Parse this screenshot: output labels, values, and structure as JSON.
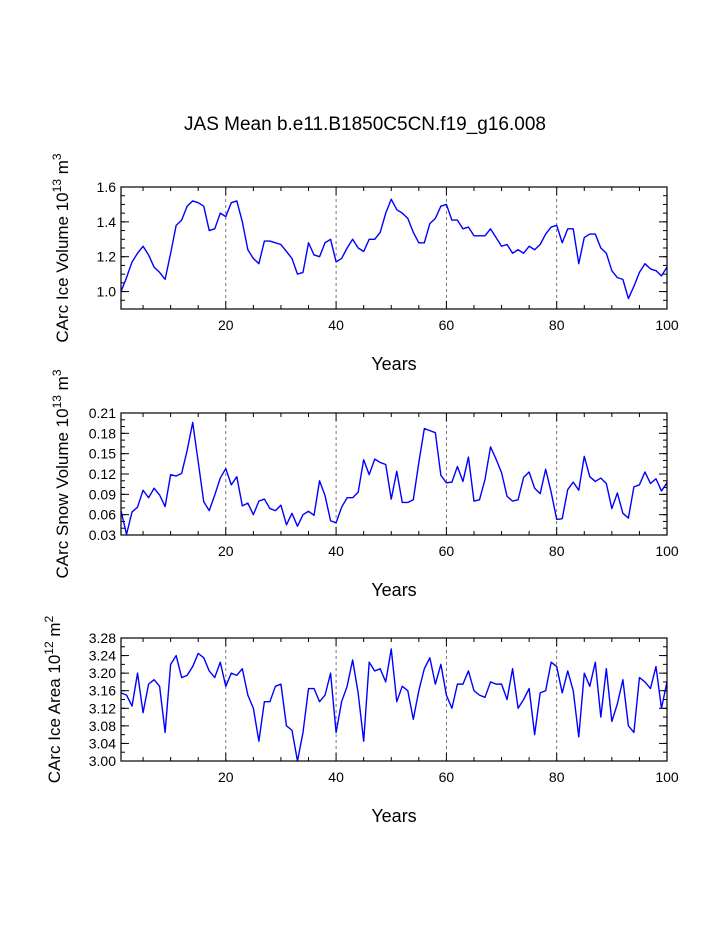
{
  "title": "JAS Mean b.e11.B1850C5CN.f19_g16.008",
  "chart_data": [
    {
      "type": "line",
      "name": "ice-volume",
      "xlabel": "Years",
      "ylabel": {
        "main": "CArc Ice Volume 10",
        "exp": "13",
        "unit": " m",
        "unit_exp": "3"
      },
      "xlim": [
        1,
        100
      ],
      "ylim": [
        0.9,
        1.6
      ],
      "x_ticks": [
        20,
        40,
        60,
        80,
        100
      ],
      "x_tick_labels": [
        "20",
        "40",
        "60",
        "80",
        "100"
      ],
      "y_ticks": [
        1.0,
        1.2,
        1.4,
        1.6
      ],
      "y_tick_labels": [
        "1.0",
        "1.2",
        "1.4",
        "1.6"
      ],
      "y_minor_step": 0.05,
      "grid_x": [
        20,
        40,
        60,
        80
      ],
      "values": [
        1.0,
        1.08,
        1.17,
        1.22,
        1.26,
        1.21,
        1.14,
        1.11,
        1.07,
        1.22,
        1.38,
        1.41,
        1.49,
        1.52,
        1.51,
        1.49,
        1.35,
        1.36,
        1.45,
        1.43,
        1.51,
        1.52,
        1.4,
        1.24,
        1.19,
        1.16,
        1.29,
        1.29,
        1.28,
        1.27,
        1.23,
        1.19,
        1.1,
        1.11,
        1.28,
        1.21,
        1.2,
        1.28,
        1.3,
        1.17,
        1.19,
        1.25,
        1.3,
        1.25,
        1.23,
        1.3,
        1.3,
        1.34,
        1.45,
        1.53,
        1.47,
        1.45,
        1.42,
        1.34,
        1.28,
        1.28,
        1.39,
        1.42,
        1.49,
        1.5,
        1.41,
        1.41,
        1.36,
        1.37,
        1.32,
        1.32,
        1.32,
        1.36,
        1.31,
        1.26,
        1.27,
        1.22,
        1.24,
        1.22,
        1.26,
        1.24,
        1.27,
        1.33,
        1.37,
        1.38,
        1.28,
        1.36,
        1.36,
        1.16,
        1.31,
        1.33,
        1.33,
        1.25,
        1.22,
        1.12,
        1.08,
        1.07,
        0.96,
        1.03,
        1.11,
        1.16,
        1.13,
        1.12,
        1.09,
        1.14
      ]
    },
    {
      "type": "line",
      "name": "snow-volume",
      "xlabel": "Years",
      "ylabel": {
        "main": "CArc Snow Volume 10",
        "exp": "13",
        "unit": " m",
        "unit_exp": "3"
      },
      "xlim": [
        1,
        100
      ],
      "ylim": [
        0.03,
        0.21
      ],
      "x_ticks": [
        20,
        40,
        60,
        80,
        100
      ],
      "x_tick_labels": [
        "20",
        "40",
        "60",
        "80",
        "100"
      ],
      "y_ticks": [
        0.03,
        0.06,
        0.09,
        0.12,
        0.15,
        0.18,
        0.21
      ],
      "y_tick_labels": [
        "0.03",
        "0.06",
        "0.09",
        "0.12",
        "0.15",
        "0.18",
        "0.21"
      ],
      "y_minor_step": 0.01,
      "grid_x": [
        20,
        40,
        60,
        80
      ],
      "values": [
        0.066,
        0.031,
        0.064,
        0.071,
        0.096,
        0.085,
        0.099,
        0.089,
        0.072,
        0.119,
        0.117,
        0.121,
        0.155,
        0.196,
        0.138,
        0.079,
        0.066,
        0.089,
        0.114,
        0.128,
        0.104,
        0.116,
        0.073,
        0.077,
        0.06,
        0.08,
        0.083,
        0.069,
        0.066,
        0.074,
        0.045,
        0.062,
        0.043,
        0.06,
        0.065,
        0.059,
        0.11,
        0.088,
        0.051,
        0.048,
        0.071,
        0.085,
        0.085,
        0.093,
        0.141,
        0.119,
        0.142,
        0.137,
        0.134,
        0.083,
        0.124,
        0.078,
        0.078,
        0.082,
        0.137,
        0.187,
        0.184,
        0.181,
        0.118,
        0.107,
        0.108,
        0.131,
        0.109,
        0.145,
        0.08,
        0.082,
        0.112,
        0.16,
        0.142,
        0.122,
        0.087,
        0.08,
        0.082,
        0.115,
        0.123,
        0.099,
        0.091,
        0.127,
        0.093,
        0.053,
        0.054,
        0.097,
        0.108,
        0.096,
        0.146,
        0.116,
        0.109,
        0.114,
        0.106,
        0.069,
        0.092,
        0.062,
        0.055,
        0.101,
        0.104,
        0.123,
        0.106,
        0.113,
        0.095,
        0.107
      ]
    },
    {
      "type": "line",
      "name": "ice-area",
      "xlabel": "Years",
      "ylabel": {
        "main": "CArc Ice Area 10",
        "exp": "12",
        "unit": " m",
        "unit_exp": "2"
      },
      "xlim": [
        1,
        100
      ],
      "ylim": [
        3.0,
        3.28
      ],
      "x_ticks": [
        20,
        40,
        60,
        80,
        100
      ],
      "x_tick_labels": [
        "20",
        "40",
        "60",
        "80",
        "100"
      ],
      "y_ticks": [
        3.0,
        3.04,
        3.08,
        3.12,
        3.16,
        3.2,
        3.24,
        3.28
      ],
      "y_tick_labels": [
        "3.00",
        "3.04",
        "3.08",
        "3.12",
        "3.16",
        "3.20",
        "3.24",
        "3.28"
      ],
      "y_minor_step": 0.02,
      "grid_x": [
        20,
        40,
        60,
        80
      ],
      "values": [
        3.155,
        3.15,
        3.125,
        3.2,
        3.11,
        3.175,
        3.185,
        3.17,
        3.065,
        3.22,
        3.24,
        3.19,
        3.195,
        3.215,
        3.245,
        3.235,
        3.205,
        3.19,
        3.225,
        3.17,
        3.2,
        3.195,
        3.21,
        3.15,
        3.12,
        3.045,
        3.135,
        3.135,
        3.17,
        3.175,
        3.08,
        3.07,
        3.0,
        3.065,
        3.165,
        3.165,
        3.135,
        3.15,
        3.2,
        3.065,
        3.135,
        3.17,
        3.23,
        3.155,
        3.045,
        3.225,
        3.205,
        3.21,
        3.18,
        3.255,
        3.135,
        3.17,
        3.16,
        3.095,
        3.16,
        3.21,
        3.235,
        3.175,
        3.22,
        3.15,
        3.12,
        3.175,
        3.175,
        3.205,
        3.16,
        3.15,
        3.145,
        3.18,
        3.175,
        3.175,
        3.14,
        3.21,
        3.12,
        3.14,
        3.165,
        3.06,
        3.155,
        3.16,
        3.225,
        3.215,
        3.155,
        3.205,
        3.16,
        3.055,
        3.2,
        3.17,
        3.225,
        3.1,
        3.21,
        3.09,
        3.13,
        3.185,
        3.08,
        3.065,
        3.19,
        3.18,
        3.165,
        3.215,
        3.12,
        3.18
      ]
    }
  ]
}
